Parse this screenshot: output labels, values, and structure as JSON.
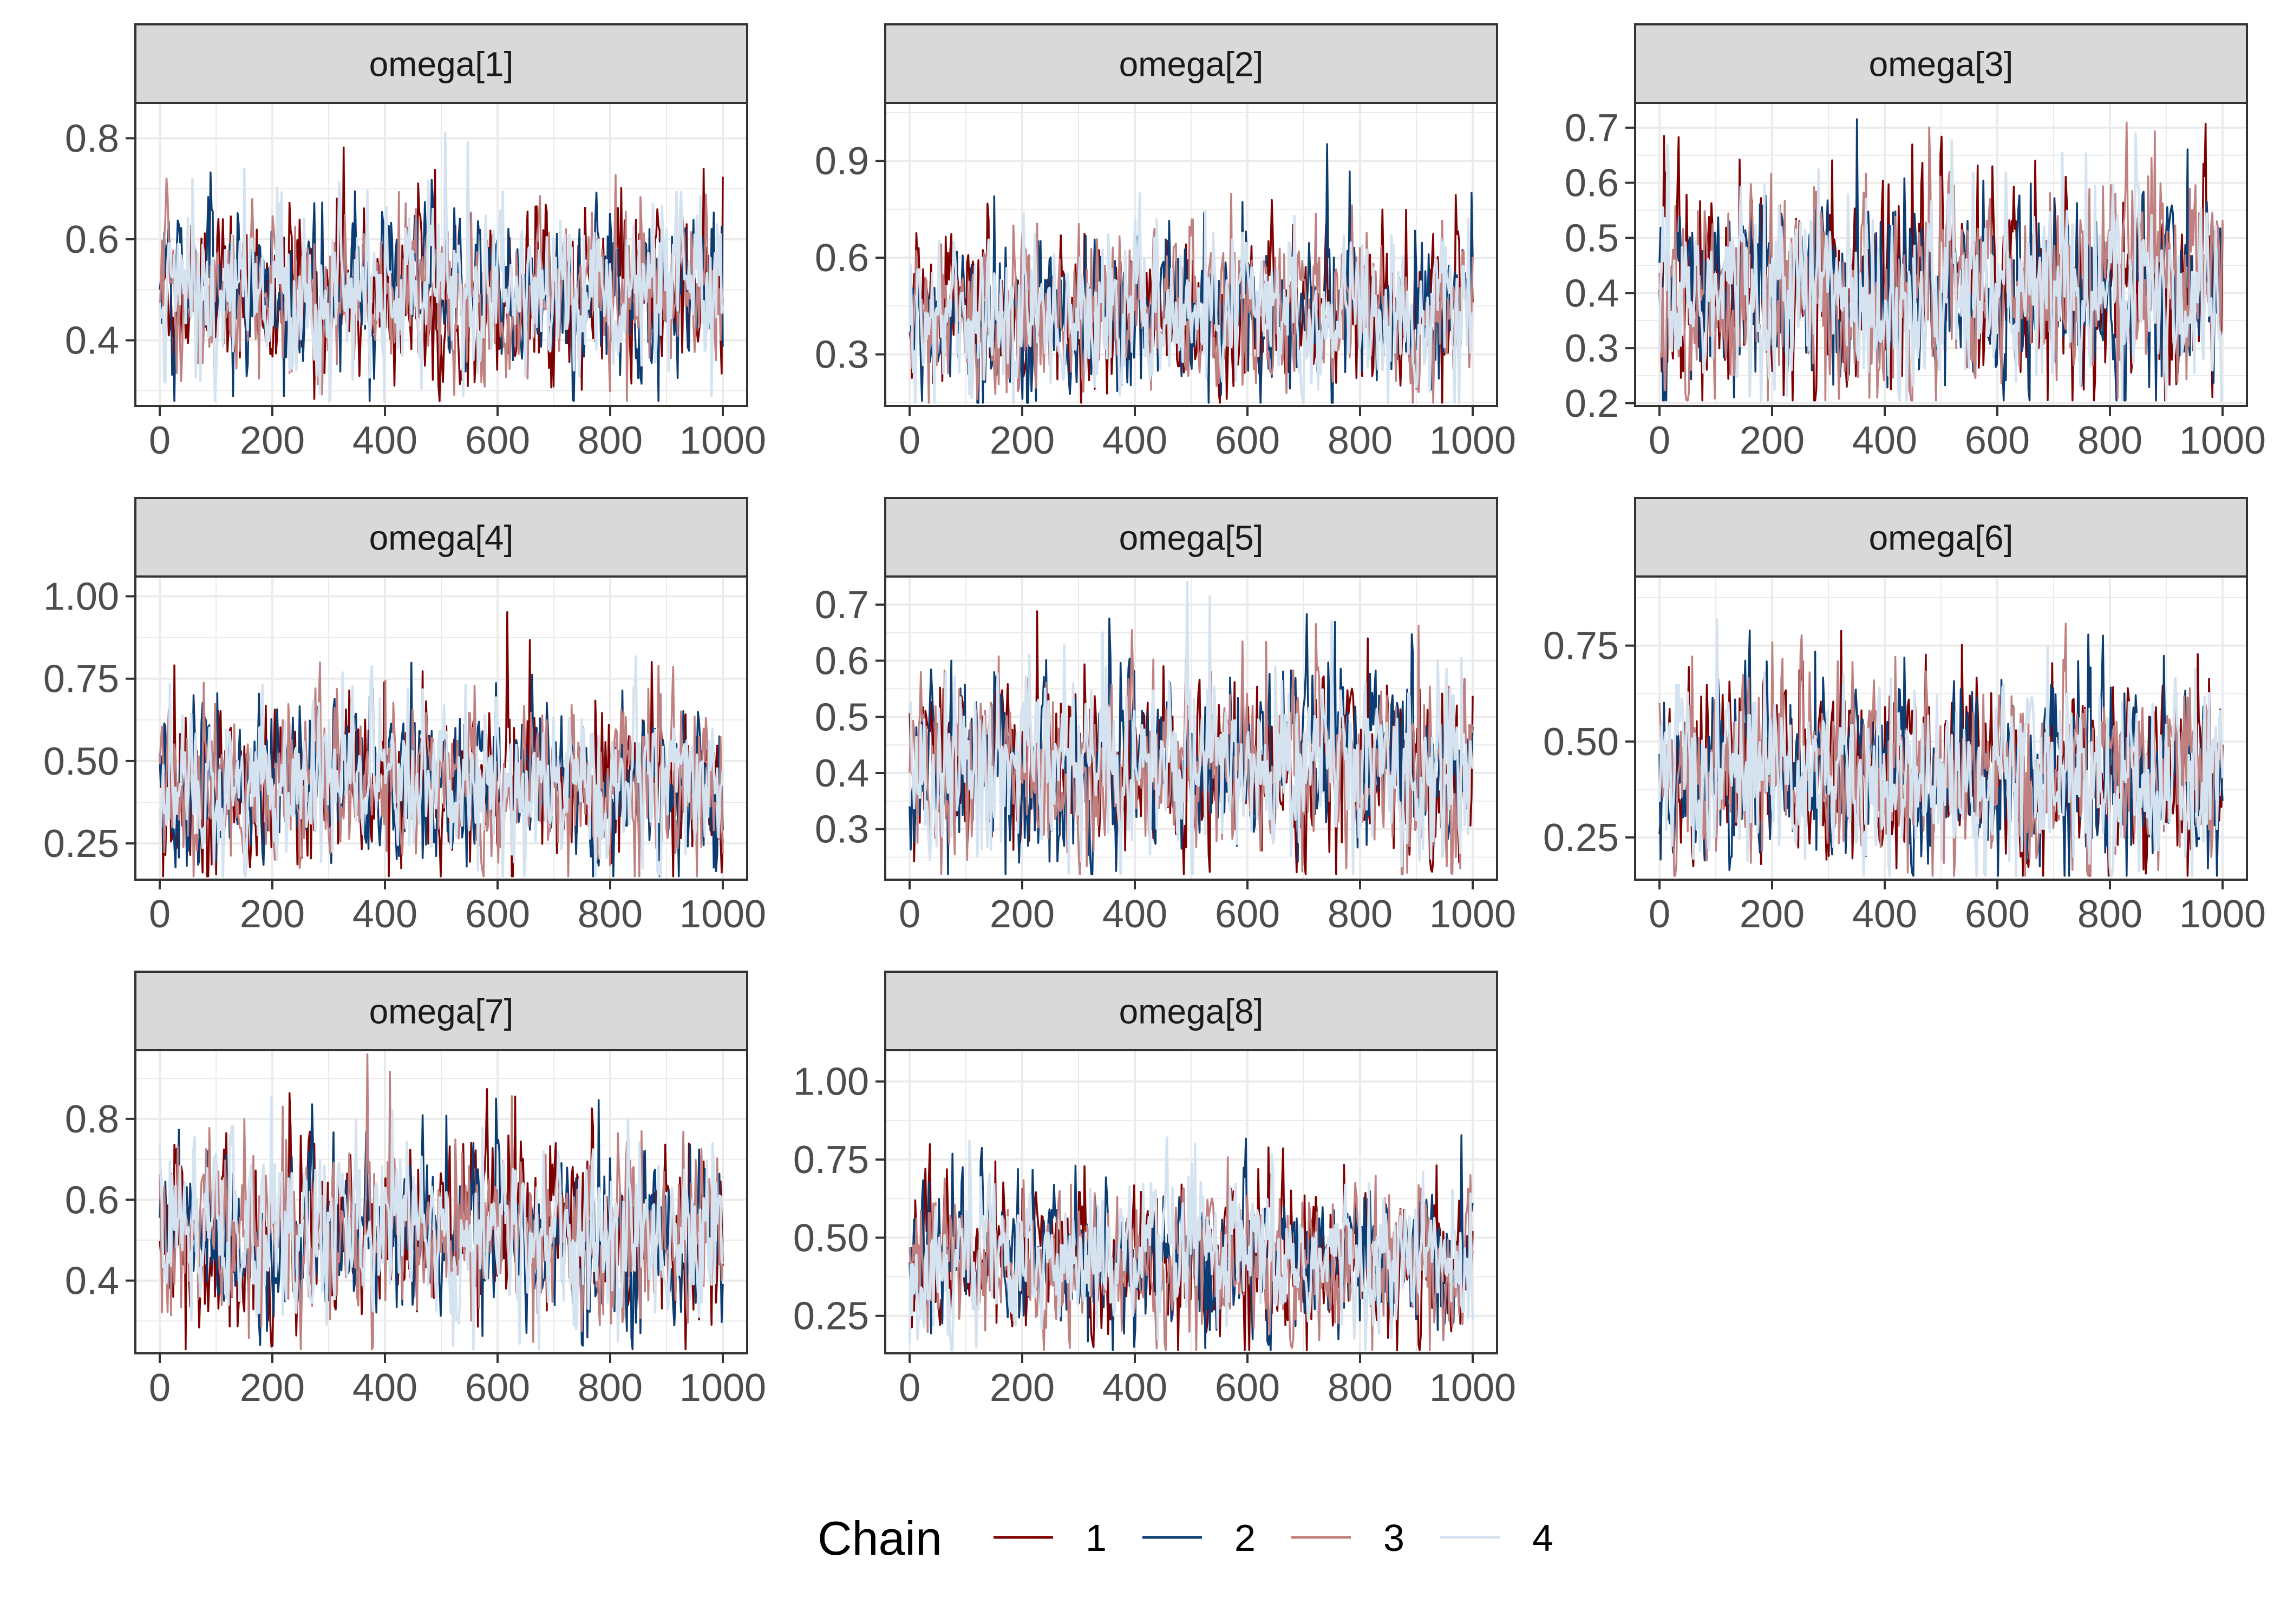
{
  "chart_data": {
    "type": "line",
    "description_kind": "MCMC trace plots",
    "x_ticks": [
      0,
      200,
      400,
      600,
      800,
      1000
    ],
    "x_range": [
      0,
      1000
    ],
    "iterations": 1000,
    "legend": {
      "title": "Chain",
      "position": "bottom",
      "entries": [
        {
          "label": "1",
          "color": "#7f0000"
        },
        {
          "label": "2",
          "color": "#0b3c73"
        },
        {
          "label": "3",
          "color": "#c08080"
        },
        {
          "label": "4",
          "color": "#d4e3ef"
        }
      ]
    },
    "panels": [
      {
        "title": "omega[1]",
        "y_ticks": [
          "0.4",
          "0.6",
          "0.8"
        ],
        "y_range": [
          0.27,
          0.87
        ],
        "center": 0.49,
        "spread": 0.075
      },
      {
        "title": "omega[2]",
        "y_ticks": [
          "0.3",
          "0.6",
          "0.9"
        ],
        "y_range": [
          0.14,
          1.08
        ],
        "center": 0.42,
        "spread": 0.11
      },
      {
        "title": "omega[3]",
        "y_ticks": [
          "0.2",
          "0.3",
          "0.4",
          "0.5",
          "0.6",
          "0.7"
        ],
        "y_range": [
          0.195,
          0.745
        ],
        "center": 0.4,
        "spread": 0.085
      },
      {
        "title": "omega[4]",
        "y_ticks": [
          "0.25",
          "0.50",
          "0.75",
          "1.00"
        ],
        "y_range": [
          0.14,
          1.06
        ],
        "center": 0.42,
        "spread": 0.11
      },
      {
        "title": "omega[5]",
        "y_ticks": [
          "0.3",
          "0.4",
          "0.5",
          "0.6",
          "0.7"
        ],
        "y_range": [
          0.21,
          0.75
        ],
        "center": 0.41,
        "spread": 0.075
      },
      {
        "title": "omega[6]",
        "y_ticks": [
          "0.25",
          "0.50",
          "0.75"
        ],
        "y_range": [
          0.14,
          0.93
        ],
        "center": 0.41,
        "spread": 0.11
      },
      {
        "title": "omega[7]",
        "y_ticks": [
          "0.4",
          "0.6",
          "0.8"
        ],
        "y_range": [
          0.22,
          0.97
        ],
        "center": 0.51,
        "spread": 0.1
      },
      {
        "title": "omega[8]",
        "y_ticks": [
          "0.25",
          "0.50",
          "0.75",
          "1.00"
        ],
        "y_range": [
          0.13,
          1.1
        ],
        "center": 0.42,
        "spread": 0.11
      }
    ]
  }
}
